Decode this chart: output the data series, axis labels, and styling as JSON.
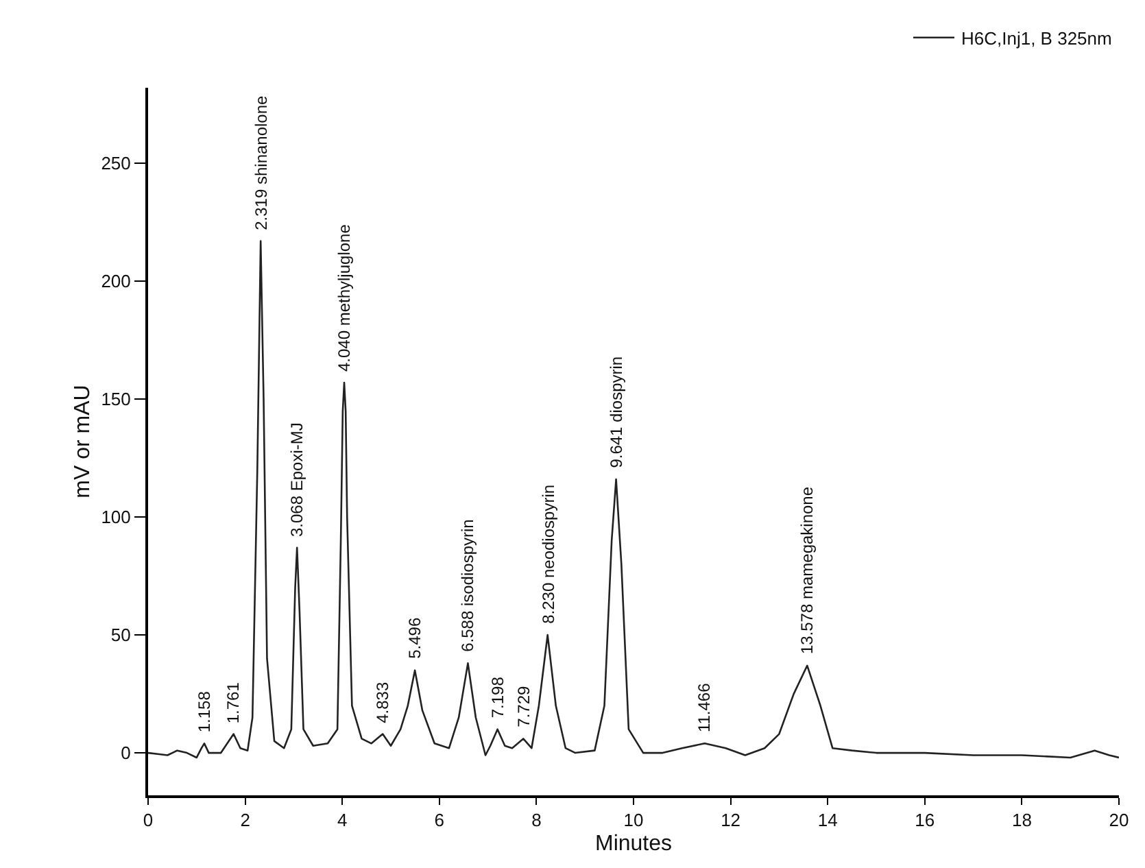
{
  "chart_data": {
    "type": "line",
    "xlabel": "Minutes",
    "ylabel": "mV or mAU",
    "xlim": [
      0,
      20
    ],
    "ylim": [
      -18,
      282
    ],
    "xticks": [
      0,
      2,
      4,
      6,
      8,
      10,
      12,
      14,
      16,
      18,
      20
    ],
    "yticks": [
      0,
      50,
      100,
      150,
      200,
      250
    ],
    "grid": false,
    "legend": "top right",
    "line_style": "solid",
    "marker": "none",
    "series": [
      {
        "name": "H6C,Inj1, B 325nm",
        "color": "#222222",
        "x": [
          0,
          0.2,
          0.4,
          0.6,
          0.8,
          1.0,
          1.1,
          1.158,
          1.25,
          1.5,
          1.761,
          1.9,
          2.05,
          2.15,
          2.25,
          2.319,
          2.38,
          2.45,
          2.6,
          2.8,
          2.95,
          3.03,
          3.068,
          3.12,
          3.2,
          3.4,
          3.7,
          3.9,
          3.97,
          4.01,
          4.04,
          4.07,
          4.1,
          4.2,
          4.4,
          4.6,
          4.833,
          5.0,
          5.2,
          5.35,
          5.496,
          5.65,
          5.9,
          6.2,
          6.4,
          6.588,
          6.75,
          6.95,
          7.05,
          7.198,
          7.35,
          7.5,
          7.729,
          7.9,
          8.05,
          8.23,
          8.4,
          8.6,
          8.8,
          9.2,
          9.4,
          9.55,
          9.641,
          9.75,
          9.9,
          10.2,
          10.6,
          11.0,
          11.466,
          11.9,
          12.3,
          12.7,
          13.0,
          13.3,
          13.578,
          13.85,
          14.1,
          14.5,
          15,
          16,
          17,
          18,
          19,
          19.5,
          19.8,
          20
        ],
        "values": [
          0,
          -0.5,
          -1,
          1,
          0,
          -2,
          2,
          4,
          0,
          0,
          8,
          2,
          1,
          15,
          120,
          217,
          150,
          40,
          5,
          2,
          10,
          70,
          87,
          60,
          10,
          3,
          4,
          10,
          90,
          145,
          157,
          145,
          100,
          20,
          6,
          4,
          8,
          3,
          10,
          20,
          35,
          18,
          4,
          2,
          15,
          38,
          15,
          -1,
          3,
          10,
          3,
          2,
          6,
          2,
          20,
          50,
          20,
          2,
          0,
          1,
          20,
          90,
          116,
          80,
          10,
          0,
          0,
          2,
          4,
          2,
          -1,
          2,
          8,
          25,
          37,
          20,
          2,
          1,
          0,
          0,
          -1,
          -1,
          -2,
          1,
          -1,
          -2
        ]
      }
    ],
    "annotations": [
      {
        "text": "1.158",
        "x": 1.158,
        "y": 4
      },
      {
        "text": "1.761",
        "x": 1.761,
        "y": 8
      },
      {
        "text": "2.319 shinanolone",
        "x": 2.319,
        "y": 217
      },
      {
        "text": "3.068 Epoxi-MJ",
        "x": 3.068,
        "y": 87
      },
      {
        "text": "4.040 methyljuglone",
        "x": 4.04,
        "y": 157
      },
      {
        "text": "4.833",
        "x": 4.833,
        "y": 8
      },
      {
        "text": "5.496",
        "x": 5.496,
        "y": 35
      },
      {
        "text": "6.588 isodiospyrin",
        "x": 6.588,
        "y": 38
      },
      {
        "text": "7.198",
        "x": 7.198,
        "y": 10
      },
      {
        "text": "7.729",
        "x": 7.729,
        "y": 6
      },
      {
        "text": "8.230 neodiospyrin",
        "x": 8.23,
        "y": 50
      },
      {
        "text": "9.641 diospyrin",
        "x": 9.641,
        "y": 116
      },
      {
        "text": "11.466",
        "x": 11.466,
        "y": 4
      },
      {
        "text": "13.578 mamegakinone",
        "x": 13.578,
        "y": 37
      }
    ]
  }
}
